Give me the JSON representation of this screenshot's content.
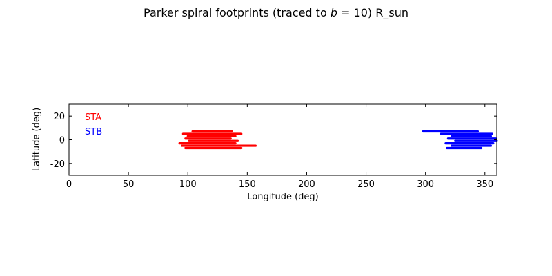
{
  "chart_data": {
    "type": "scatter",
    "title": {
      "prefix": "Parker spiral footprints (traced to ",
      "italic": "b",
      "suffix": " = 10) R_sun"
    },
    "xlabel": "Longitude (deg)",
    "ylabel": "Latitude (deg)",
    "xlim": [
      0,
      360
    ],
    "ylim": [
      -30,
      30
    ],
    "xticks": [
      0,
      50,
      100,
      150,
      200,
      250,
      300,
      350
    ],
    "yticks": [
      -20,
      0,
      20
    ],
    "grid": false,
    "legend_placement": "top-left",
    "series": [
      {
        "name": "STA",
        "color": "#ff0000",
        "segments": [
          {
            "lat": 7,
            "lon_start": 104,
            "lon_end": 137
          },
          {
            "lat": 5,
            "lon_start": 96,
            "lon_end": 145
          },
          {
            "lat": 3,
            "lon_start": 100,
            "lon_end": 140
          },
          {
            "lat": 1,
            "lon_start": 98,
            "lon_end": 136
          },
          {
            "lat": -1,
            "lon_start": 101,
            "lon_end": 142
          },
          {
            "lat": -3,
            "lon_start": 93,
            "lon_end": 140
          },
          {
            "lat": -5,
            "lon_start": 95,
            "lon_end": 157
          },
          {
            "lat": -7,
            "lon_start": 98,
            "lon_end": 145
          }
        ]
      },
      {
        "name": "STB",
        "color": "#0000ff",
        "segments": [
          {
            "lat": 7,
            "lon_start": 298,
            "lon_end": 344
          },
          {
            "lat": 5,
            "lon_start": 313,
            "lon_end": 356
          },
          {
            "lat": 3,
            "lon_start": 322,
            "lon_end": 355
          },
          {
            "lat": 1,
            "lon_start": 319,
            "lon_end": 359
          },
          {
            "lat": -1,
            "lon_start": 325,
            "lon_end": 360
          },
          {
            "lat": -3,
            "lon_start": 317,
            "lon_end": 357
          },
          {
            "lat": -5,
            "lon_start": 322,
            "lon_end": 355
          },
          {
            "lat": -7,
            "lon_start": 318,
            "lon_end": 347
          }
        ]
      }
    ]
  }
}
